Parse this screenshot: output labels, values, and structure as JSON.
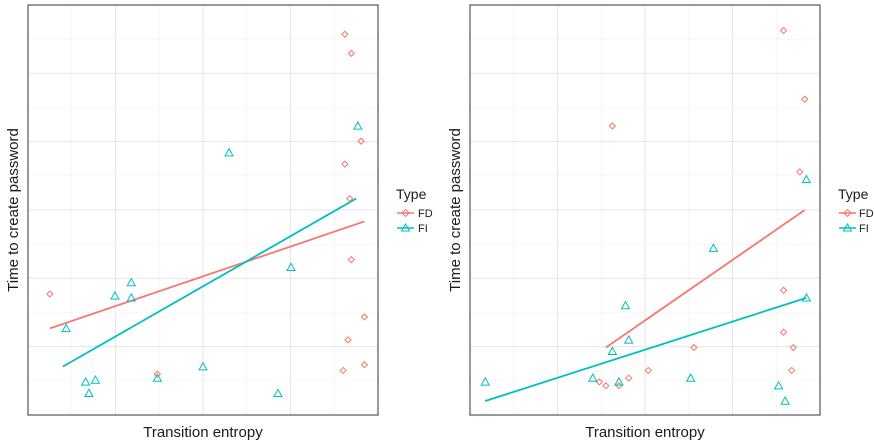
{
  "colors": {
    "FD": "#f8766d",
    "FI": "#00bfc4"
  },
  "chart_data": [
    {
      "type": "scatter",
      "xlabel": "Transition entropy",
      "ylabel": "Time to create password",
      "legend_title": "Type",
      "legend_placement": "right",
      "xlim": [
        0,
        1
      ],
      "ylim": [
        0,
        1
      ],
      "grid": true,
      "series": [
        {
          "name": "FD",
          "marker": "diamond",
          "points": [
            [
              0.03,
              0.28
            ],
            [
              0.36,
              0.07
            ],
            [
              0.935,
              0.96
            ],
            [
              0.955,
              0.91
            ],
            [
              0.935,
              0.62
            ],
            [
              0.95,
              0.53
            ],
            [
              0.985,
              0.68
            ],
            [
              0.955,
              0.37
            ],
            [
              0.995,
              0.22
            ],
            [
              0.945,
              0.16
            ],
            [
              0.93,
              0.08
            ],
            [
              0.995,
              0.095
            ]
          ],
          "trend": [
            [
              0.03,
              0.19
            ],
            [
              0.995,
              0.47
            ]
          ]
        },
        {
          "name": "FI",
          "marker": "triangle",
          "points": [
            [
              0.08,
              0.19
            ],
            [
              0.14,
              0.05
            ],
            [
              0.17,
              0.055
            ],
            [
              0.15,
              0.02
            ],
            [
              0.23,
              0.275
            ],
            [
              0.28,
              0.31
            ],
            [
              0.28,
              0.27
            ],
            [
              0.36,
              0.06
            ],
            [
              0.5,
              0.09
            ],
            [
              0.58,
              0.65
            ],
            [
              0.77,
              0.35
            ],
            [
              0.73,
              0.02
            ],
            [
              0.975,
              0.72
            ]
          ],
          "trend": [
            [
              0.07,
              0.09
            ],
            [
              0.97,
              0.53
            ]
          ]
        }
      ]
    },
    {
      "type": "scatter",
      "xlabel": "Transition entropy",
      "ylabel": "Time to create password",
      "legend_title": "Type",
      "legend_placement": "right",
      "xlim": [
        0,
        1
      ],
      "ylim": [
        0,
        1
      ],
      "grid": true,
      "series": [
        {
          "name": "FD",
          "marker": "diamond",
          "points": [
            [
              0.4,
              0.72
            ],
            [
              0.925,
              0.97
            ],
            [
              0.99,
              0.79
            ],
            [
              0.975,
              0.6
            ],
            [
              0.925,
              0.29
            ],
            [
              0.925,
              0.18
            ],
            [
              0.955,
              0.14
            ],
            [
              0.36,
              0.05
            ],
            [
              0.38,
              0.04
            ],
            [
              0.42,
              0.04
            ],
            [
              0.45,
              0.06
            ],
            [
              0.51,
              0.08
            ],
            [
              0.65,
              0.14
            ],
            [
              0.95,
              0.08
            ]
          ],
          "trend": [
            [
              0.38,
              0.14
            ],
            [
              0.99,
              0.5
            ]
          ]
        },
        {
          "name": "FI",
          "marker": "triangle",
          "points": [
            [
              0.01,
              0.05
            ],
            [
              0.34,
              0.06
            ],
            [
              0.4,
              0.13
            ],
            [
              0.44,
              0.25
            ],
            [
              0.45,
              0.16
            ],
            [
              0.42,
              0.05
            ],
            [
              0.64,
              0.06
            ],
            [
              0.71,
              0.4
            ],
            [
              0.91,
              0.04
            ],
            [
              0.93,
              0.0
            ],
            [
              0.995,
              0.58
            ],
            [
              0.995,
              0.27
            ]
          ],
          "trend": [
            [
              0.01,
              0.0
            ],
            [
              0.995,
              0.27
            ]
          ]
        }
      ]
    }
  ]
}
